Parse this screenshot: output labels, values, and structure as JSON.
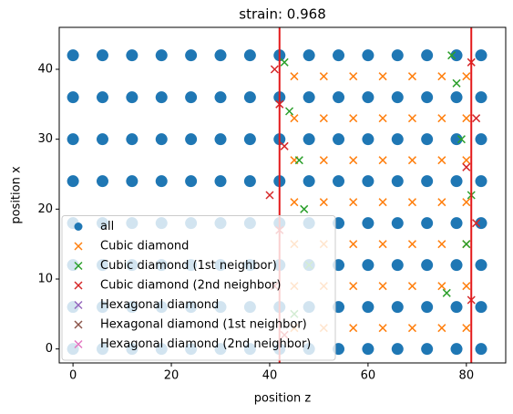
{
  "chart_data": {
    "type": "scatter",
    "title": "strain: 0.968",
    "xlabel": "position z",
    "ylabel": "position x",
    "xlim": [
      -2.8,
      88
    ],
    "ylim": [
      -2,
      46
    ],
    "xticks": [
      0,
      20,
      40,
      60,
      80
    ],
    "yticks": [
      0,
      10,
      20,
      30,
      40
    ],
    "legend": "lower left",
    "vlines": {
      "color": "#e41a1c",
      "x": [
        42,
        81
      ]
    },
    "series": [
      {
        "name": "all",
        "color": "#1f77b4",
        "marker": "o",
        "x": [
          0,
          6,
          12,
          18,
          24,
          30,
          36,
          42,
          48,
          54,
          60,
          66,
          72,
          78,
          83,
          0,
          6,
          12,
          18,
          24,
          30,
          36,
          42,
          48,
          54,
          60,
          66,
          72,
          78,
          83,
          0,
          6,
          12,
          18,
          24,
          30,
          36,
          42,
          48,
          54,
          60,
          66,
          72,
          78,
          83,
          0,
          6,
          12,
          18,
          24,
          30,
          36,
          42,
          48,
          54,
          60,
          66,
          72,
          78,
          83,
          0,
          6,
          12,
          18,
          24,
          30,
          36,
          42,
          48,
          54,
          60,
          66,
          72,
          78,
          83,
          0,
          6,
          12,
          18,
          24,
          30,
          36,
          42,
          48,
          54,
          60,
          66,
          72,
          78,
          83,
          0,
          6,
          12,
          18,
          24,
          30,
          36,
          42,
          48,
          54,
          60,
          66,
          72,
          78,
          83,
          0,
          6,
          12,
          18,
          24,
          30,
          36,
          42,
          48,
          54,
          60,
          66,
          72,
          78,
          83
        ],
        "values": [
          0,
          0,
          0,
          0,
          0,
          0,
          0,
          0,
          0,
          0,
          0,
          0,
          0,
          0,
          0,
          6,
          6,
          6,
          6,
          6,
          6,
          6,
          6,
          6,
          6,
          6,
          6,
          6,
          6,
          6,
          12,
          12,
          12,
          12,
          12,
          12,
          12,
          12,
          12,
          12,
          12,
          12,
          12,
          12,
          12,
          18,
          18,
          18,
          18,
          18,
          18,
          18,
          18,
          18,
          18,
          18,
          18,
          18,
          18,
          18,
          24,
          24,
          24,
          24,
          24,
          24,
          24,
          24,
          24,
          24,
          24,
          24,
          24,
          24,
          24,
          30,
          30,
          30,
          30,
          30,
          30,
          30,
          30,
          30,
          30,
          30,
          30,
          30,
          30,
          30,
          36,
          36,
          36,
          36,
          36,
          36,
          36,
          36,
          36,
          36,
          36,
          36,
          36,
          36,
          36,
          42,
          42,
          42,
          42,
          42,
          42,
          42,
          42,
          42,
          42,
          42,
          42,
          42,
          42,
          42
        ]
      },
      {
        "name": "Cubic diamond",
        "color": "#ff7f0e",
        "marker": "x",
        "x": [
          45,
          51,
          57,
          63,
          69,
          75,
          80,
          45,
          51,
          57,
          63,
          69,
          75,
          80,
          45,
          51,
          57,
          63,
          69,
          75,
          80,
          45,
          51,
          57,
          63,
          69,
          75,
          80,
          45,
          51,
          57,
          63,
          69,
          75,
          80,
          45,
          51,
          57,
          63,
          69,
          75,
          80,
          45,
          51,
          57,
          63,
          69,
          75,
          80
        ],
        "values": [
          3,
          3,
          3,
          3,
          3,
          3,
          3,
          9,
          9,
          9,
          9,
          9,
          9,
          9,
          15,
          15,
          15,
          15,
          15,
          15,
          15,
          21,
          21,
          21,
          21,
          21,
          21,
          21,
          27,
          27,
          27,
          27,
          27,
          27,
          27,
          33,
          33,
          33,
          33,
          33,
          33,
          33,
          39,
          39,
          39,
          39,
          39,
          39,
          39
        ]
      },
      {
        "name": "Cubic diamond (1st neighbor)",
        "color": "#2ca02c",
        "marker": "x",
        "x": [
          43,
          44,
          46,
          47,
          78,
          79,
          81,
          48,
          76,
          45,
          80,
          77
        ],
        "values": [
          41,
          34,
          27,
          20,
          38,
          30,
          22,
          12,
          8,
          5,
          15,
          42
        ]
      },
      {
        "name": "Cubic diamond (2nd neighbor)",
        "color": "#d62728",
        "marker": "x",
        "x": [
          41,
          42,
          43,
          40,
          42,
          41,
          81,
          82,
          80,
          82,
          81,
          43
        ],
        "values": [
          40,
          35,
          29,
          22,
          17,
          9,
          41,
          33,
          26,
          18,
          7,
          2
        ]
      },
      {
        "name": "Hexagonal diamond",
        "color": "#9467bd",
        "marker": "x",
        "x": [],
        "values": []
      },
      {
        "name": "Hexagonal diamond (1st neighbor)",
        "color": "#8c564b",
        "marker": "x",
        "x": [],
        "values": []
      },
      {
        "name": "Hexagonal diamond (2nd neighbor)",
        "color": "#e377c2",
        "marker": "x",
        "x": [],
        "values": []
      }
    ]
  }
}
